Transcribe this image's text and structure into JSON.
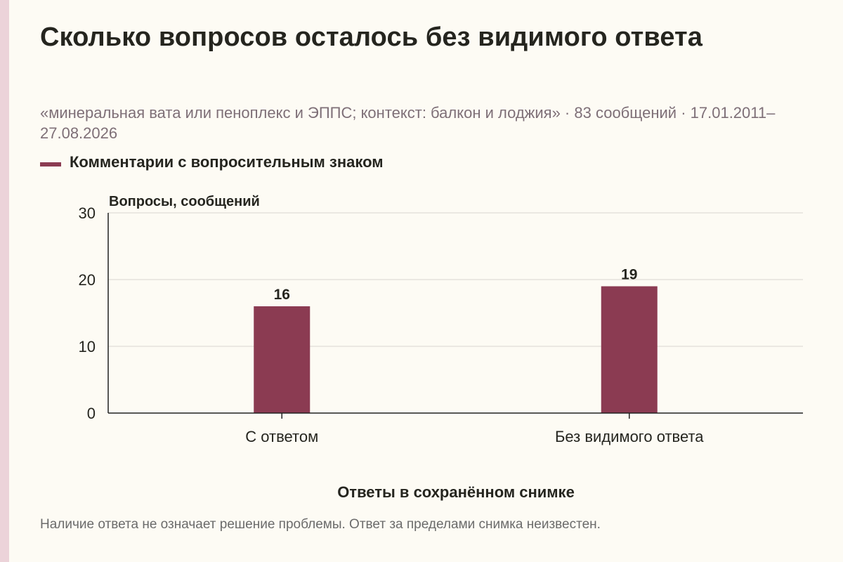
{
  "title": "Сколько вопросов осталось без видимого ответа",
  "subtitle": "«минеральная вата или пеноплекс и ЭППС; контекст: балкон и лоджия» · 83 сообщений · 17.01.2011–27.08.2026",
  "footnote": "Наличие ответа не означает решение проблемы. Ответ за пределами снимка неизвестен.",
  "colors": {
    "bar": "#8b3b52",
    "background": "#fdfbf4",
    "grid": "#d9d6cf",
    "axis": "#222222"
  },
  "chart_data": {
    "type": "bar",
    "categories": [
      "С ответом",
      "Без видимого ответа"
    ],
    "series": [
      {
        "name": "Комментарии с вопросительным знаком",
        "values": [
          16,
          19
        ]
      }
    ],
    "xlabel": "Ответы в сохранённом снимке",
    "ylabel": "Вопросы, сообщений",
    "ylim": [
      0,
      30
    ],
    "yticks": [
      0,
      10,
      20,
      30
    ],
    "data_labels": [
      "16",
      "19"
    ],
    "grid": true,
    "legend": "top-left"
  }
}
